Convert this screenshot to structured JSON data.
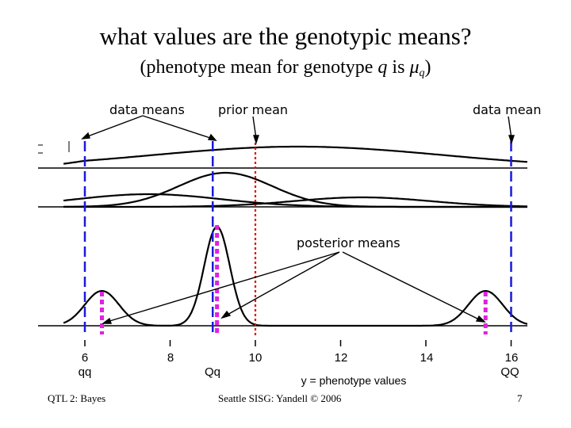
{
  "title": "what values are the genotypic means?",
  "subtitle": {
    "prefix": "(phenotype mean for genotype ",
    "q": "q",
    "mid": " is ",
    "mu": "μ",
    "sub": "q",
    "suffix": ")"
  },
  "labels": {
    "data_means": "data means",
    "prior_mean": "prior mean",
    "data_mean": "data mean",
    "posterior_means": "posterior means"
  },
  "axis": {
    "ticks": [
      "6",
      "8",
      "10",
      "12",
      "14",
      "16"
    ],
    "genotypes": [
      "qq",
      "Qq",
      "QQ"
    ],
    "xlabel": "y = phenotype values"
  },
  "footer": {
    "left": "QTL 2: Bayes",
    "center": "Seattle SISG: Yandell © 2006",
    "right": "7"
  },
  "colors": {
    "data_line": "#1a1adb",
    "prior_line": "#e01010",
    "posterior_line": "#e020e0",
    "curve": "#000000"
  },
  "chart_data": {
    "type": "line",
    "xlabel": "y = phenotype values",
    "xlim": [
      5.5,
      16.4
    ],
    "data_means": [
      6,
      9,
      16
    ],
    "prior_mean": 10,
    "posterior_means": [
      6.4,
      9.1,
      15.4
    ]
  }
}
